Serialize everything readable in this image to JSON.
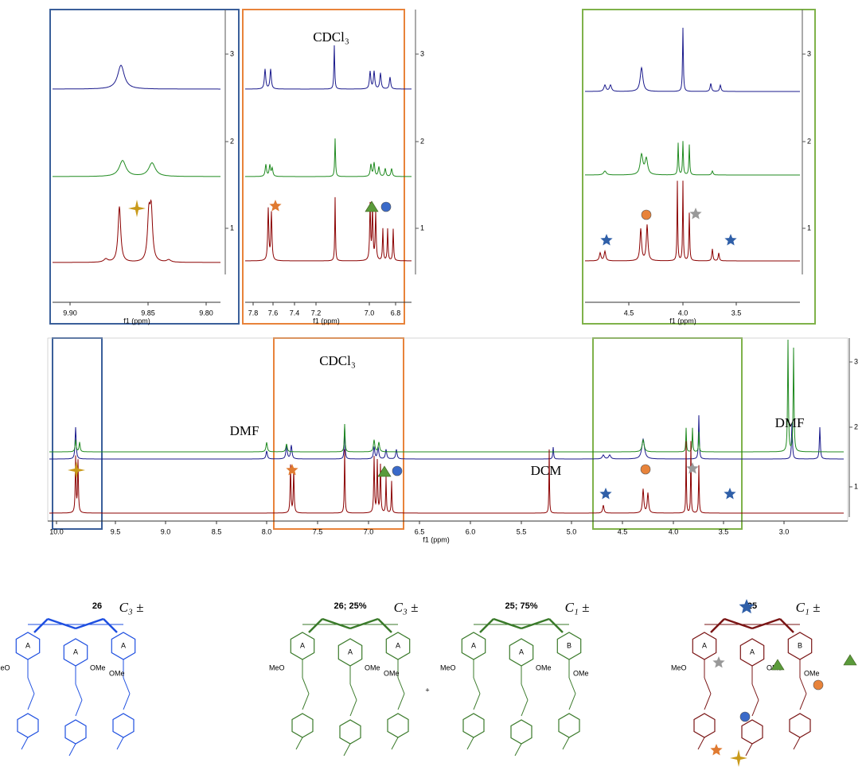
{
  "insets": [
    {
      "xticks": [
        "9.90",
        "9.85",
        "9.80"
      ],
      "xlabel": "f1 (ppm)",
      "traces": [
        "3",
        "2",
        "1"
      ]
    },
    {
      "xticks": [
        "7.8",
        "7.6",
        "7.4",
        "7.2",
        "7.0",
        "6.8"
      ],
      "xlabel": "f1 (ppm)",
      "traces": [
        "3",
        "2",
        "1"
      ],
      "annotation": "CDCl₃"
    },
    {
      "xticks": [
        "4.5",
        "4.0",
        "3.5"
      ],
      "xlabel": "f1 (ppm)",
      "traces": [
        "3",
        "2",
        "1"
      ]
    }
  ],
  "main": {
    "xticks": [
      "10.0",
      "9.5",
      "9.0",
      "8.5",
      "8.0",
      "7.5",
      "7.0",
      "6.5",
      "6.0",
      "5.5",
      "5.0",
      "4.5",
      "4.0",
      "3.5",
      "3.0"
    ],
    "xlabel": "f1 (ppm)",
    "traces": [
      "3",
      "2",
      "1"
    ],
    "annotations": [
      "CDCl₃",
      "DMF",
      "DMF",
      "DCM"
    ]
  },
  "structures": [
    {
      "title": "26",
      "symmetry": "C₃ ±",
      "rings": [
        "A",
        "A",
        "A"
      ],
      "groups": [
        "MeO",
        "OMe",
        "OMe"
      ]
    },
    {
      "title": "26; 25%",
      "symmetry": "C₃ ±",
      "rings": [
        "A",
        "A",
        "A"
      ],
      "groups": [
        "MeO",
        "OMe",
        "OMe"
      ]
    },
    {
      "title": "25; 75%",
      "symmetry": "C₁ ±",
      "rings": [
        "A",
        "A",
        "B"
      ],
      "groups": [
        "MeO",
        "OMe",
        "OMe"
      ]
    },
    {
      "title": "25",
      "symmetry": "C₁ ±",
      "rings": [
        "A",
        "A",
        "B"
      ],
      "groups": [
        "MeO",
        "OMe",
        "OMe"
      ]
    }
  ],
  "plus": "+"
}
